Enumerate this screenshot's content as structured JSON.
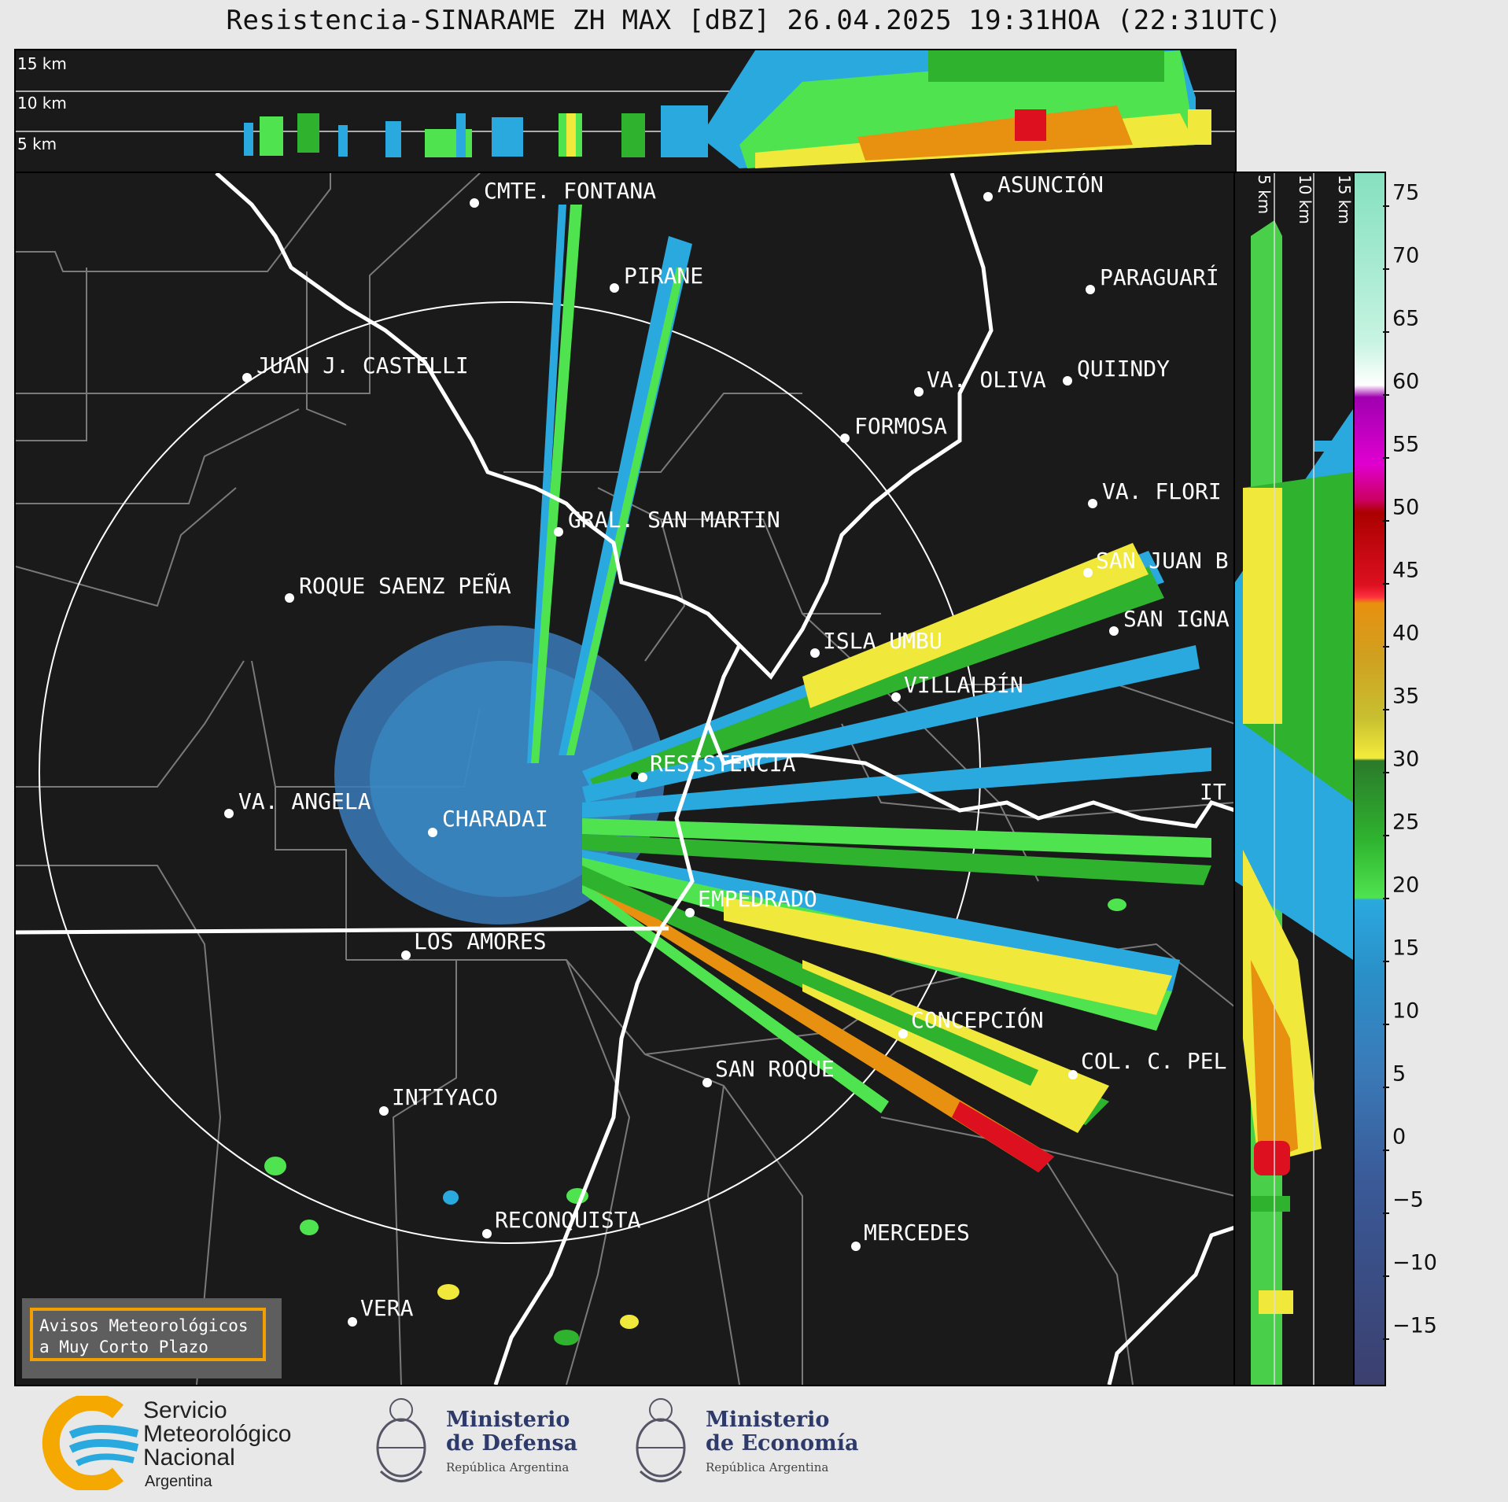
{
  "title": "Resistencia-SINARAME ZH MAX [dBZ] 26.04.2025 19:31HOA (22:31UTC)",
  "top_panel": {
    "height_labels": [
      "15 km",
      "10 km",
      "5 km"
    ]
  },
  "side_panel": {
    "height_labels": [
      "5 km",
      "10 km",
      "15 km"
    ]
  },
  "colorbar": {
    "ticks": [
      "75",
      "70",
      "65",
      "60",
      "55",
      "50",
      "45",
      "40",
      "35",
      "30",
      "25",
      "20",
      "15",
      "10",
      "5",
      "0",
      "−5",
      "−10",
      "−15"
    ],
    "range": [
      -20,
      77
    ],
    "colors": {
      "low": "#3b3f6e",
      "blue": "#3a7ab8",
      "cyan": "#2aa9df",
      "green": "#2fb32f",
      "lightgreen": "#4fe34f",
      "yellow": "#f0e83a",
      "orange": "#e8900f",
      "red": "#dd1020",
      "magenta": "#e000d0",
      "white": "#ffffff",
      "teal": "#86e0c0"
    }
  },
  "map": {
    "cities": [
      {
        "name": "CMTE. FONTANA"
      },
      {
        "name": "PIRANE"
      },
      {
        "name": "JUAN J. CASTELLI"
      },
      {
        "name": "ASUNCIÓN"
      },
      {
        "name": "PARAGUARÍ"
      },
      {
        "name": "VA. OLIVA"
      },
      {
        "name": "QUIINDY"
      },
      {
        "name": "FORMOSA"
      },
      {
        "name": "VA. FLORI"
      },
      {
        "name": "GRAL. SAN MARTIN"
      },
      {
        "name": "SAN JUAN B"
      },
      {
        "name": "ROQUE SAENZ PEÑA"
      },
      {
        "name": "SAN IGNA"
      },
      {
        "name": "ISLA UMBU"
      },
      {
        "name": "VILLALBÍN"
      },
      {
        "name": "RESISTENCIA"
      },
      {
        "name": "IT"
      },
      {
        "name": "VA. ANGELA"
      },
      {
        "name": "CHARADAI"
      },
      {
        "name": "EMPEDRADO"
      },
      {
        "name": "LOS AMORES"
      },
      {
        "name": "CONCEPCIÓN"
      },
      {
        "name": "COL. C. PEL"
      },
      {
        "name": "SAN ROQUE"
      },
      {
        "name": "INTIYACO"
      },
      {
        "name": "RECONQUISTA"
      },
      {
        "name": "MERCEDES"
      },
      {
        "name": "VERA"
      }
    ]
  },
  "warning_box": {
    "line1": "Avisos Meteorológicos",
    "line2": "a Muy Corto Plazo"
  },
  "logos": {
    "smn": {
      "line1": "Servicio",
      "line2": "Meteorológico",
      "line3": "Nacional",
      "line4": "Argentina"
    },
    "defensa": {
      "line1": "Ministerio",
      "line2": "de Defensa",
      "line3": "República Argentina"
    },
    "economia": {
      "line1": "Ministerio",
      "line2": "de Economía",
      "line3": "República Argentina"
    }
  }
}
